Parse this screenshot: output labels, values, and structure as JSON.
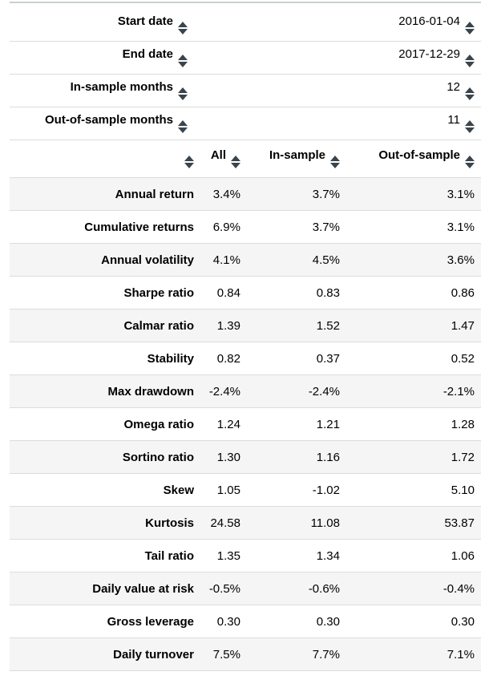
{
  "colors": {
    "stripe": "#f5f5f5",
    "border": "#dcdcdc",
    "top_border": "#c9ced2",
    "arrow": "#3a444c",
    "text": "#000000"
  },
  "dates_table": {
    "rows": [
      {
        "label": "Start date",
        "value": "2016-01-04"
      },
      {
        "label": "End date",
        "value": "2017-12-29"
      },
      {
        "label": "In-sample months",
        "value": "12"
      },
      {
        "label": "Out-of-sample months",
        "value": "11"
      }
    ]
  },
  "stats_table": {
    "columns": [
      "",
      "All",
      "In-sample",
      "Out-of-sample"
    ],
    "rows": [
      {
        "label": "Annual return",
        "all": "3.4%",
        "in_sample": "3.7%",
        "out_of_sample": "3.1%"
      },
      {
        "label": "Cumulative returns",
        "all": "6.9%",
        "in_sample": "3.7%",
        "out_of_sample": "3.1%"
      },
      {
        "label": "Annual volatility",
        "all": "4.1%",
        "in_sample": "4.5%",
        "out_of_sample": "3.6%"
      },
      {
        "label": "Sharpe ratio",
        "all": "0.84",
        "in_sample": "0.83",
        "out_of_sample": "0.86"
      },
      {
        "label": "Calmar ratio",
        "all": "1.39",
        "in_sample": "1.52",
        "out_of_sample": "1.47"
      },
      {
        "label": "Stability",
        "all": "0.82",
        "in_sample": "0.37",
        "out_of_sample": "0.52"
      },
      {
        "label": "Max drawdown",
        "all": "-2.4%",
        "in_sample": "-2.4%",
        "out_of_sample": "-2.1%"
      },
      {
        "label": "Omega ratio",
        "all": "1.24",
        "in_sample": "1.21",
        "out_of_sample": "1.28"
      },
      {
        "label": "Sortino ratio",
        "all": "1.30",
        "in_sample": "1.16",
        "out_of_sample": "1.72"
      },
      {
        "label": "Skew",
        "all": "1.05",
        "in_sample": "-1.02",
        "out_of_sample": "5.10"
      },
      {
        "label": "Kurtosis",
        "all": "24.58",
        "in_sample": "11.08",
        "out_of_sample": "53.87"
      },
      {
        "label": "Tail ratio",
        "all": "1.35",
        "in_sample": "1.34",
        "out_of_sample": "1.06"
      },
      {
        "label": "Daily value at risk",
        "all": "-0.5%",
        "in_sample": "-0.6%",
        "out_of_sample": "-0.4%"
      },
      {
        "label": "Gross leverage",
        "all": "0.30",
        "in_sample": "0.30",
        "out_of_sample": "0.30"
      },
      {
        "label": "Daily turnover",
        "all": "7.5%",
        "in_sample": "7.7%",
        "out_of_sample": "7.1%"
      }
    ]
  }
}
